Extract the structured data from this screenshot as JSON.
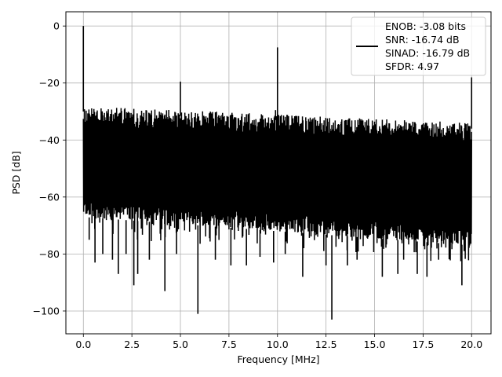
{
  "chart_data": {
    "type": "line",
    "xlabel": "Frequency [MHz]",
    "ylabel": "PSD [dB]",
    "xlim": [
      -0.9,
      21.0
    ],
    "ylim": [
      -108,
      5
    ],
    "xticks": [
      0.0,
      2.5,
      5.0,
      7.5,
      10.0,
      12.5,
      15.0,
      17.5,
      20.0
    ],
    "xtick_labels": [
      "0.0",
      "2.5",
      "5.0",
      "7.5",
      "10.0",
      "12.5",
      "15.0",
      "17.5",
      "20.0"
    ],
    "yticks": [
      0,
      -20,
      -40,
      -60,
      -80,
      -100
    ],
    "ytick_labels": [
      "0",
      "−20",
      "−40",
      "−60",
      "−80",
      "−100"
    ],
    "grid": true,
    "legend_location": "top-right",
    "legend_lines": [
      "ENOB: -3.08 bits",
      "SNR: -16.74 dB",
      "SINAD: -16.79 dB",
      "SFDR: 4.97"
    ],
    "series": [
      {
        "color": "#000000",
        "noise_floor": {
          "x_range": [
            0.0,
            20.0
          ],
          "upper_envelope_db": [
            -28,
            -34
          ],
          "lower_envelope_db": [
            -67,
            -77
          ],
          "deep_dips": [
            {
              "x": 0.3,
              "y": -75
            },
            {
              "x": 0.6,
              "y": -83
            },
            {
              "x": 1.0,
              "y": -80
            },
            {
              "x": 1.5,
              "y": -82
            },
            {
              "x": 1.8,
              "y": -87
            },
            {
              "x": 2.2,
              "y": -80
            },
            {
              "x": 2.6,
              "y": -91
            },
            {
              "x": 2.8,
              "y": -87
            },
            {
              "x": 3.4,
              "y": -82
            },
            {
              "x": 4.2,
              "y": -93
            },
            {
              "x": 4.8,
              "y": -80
            },
            {
              "x": 5.9,
              "y": -101
            },
            {
              "x": 6.8,
              "y": -82
            },
            {
              "x": 7.6,
              "y": -84
            },
            {
              "x": 8.4,
              "y": -84
            },
            {
              "x": 9.1,
              "y": -81
            },
            {
              "x": 9.8,
              "y": -83
            },
            {
              "x": 10.4,
              "y": -80
            },
            {
              "x": 11.3,
              "y": -88
            },
            {
              "x": 12.5,
              "y": -84
            },
            {
              "x": 12.8,
              "y": -103
            },
            {
              "x": 13.6,
              "y": -84
            },
            {
              "x": 14.1,
              "y": -82
            },
            {
              "x": 15.4,
              "y": -88
            },
            {
              "x": 16.2,
              "y": -87
            },
            {
              "x": 17.2,
              "y": -87
            },
            {
              "x": 17.7,
              "y": -88
            },
            {
              "x": 18.3,
              "y": -82
            },
            {
              "x": 19.5,
              "y": -91
            }
          ]
        },
        "peaks": [
          {
            "x": 0.0,
            "y": 0.0
          },
          {
            "x": 5.0,
            "y": -19.5
          },
          {
            "x": 10.0,
            "y": -7.5
          },
          {
            "x": 9.9,
            "y": -29.5
          },
          {
            "x": 20.0,
            "y": -18.0
          }
        ]
      }
    ]
  }
}
